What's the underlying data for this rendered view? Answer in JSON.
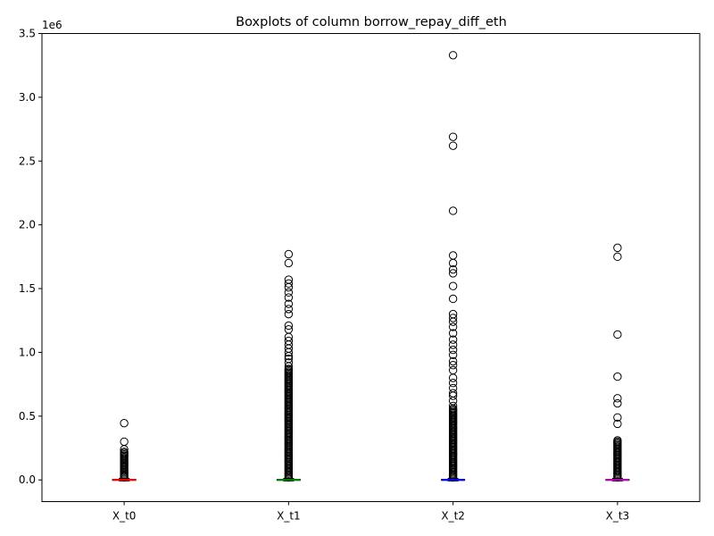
{
  "chart_data": {
    "type": "boxplot",
    "title": "Boxplots of column borrow_repay_diff_eth",
    "xlabel": "",
    "ylabel": "",
    "y_offset_label": "1e6",
    "ylim": [
      -0.17,
      3.5
    ],
    "y_ticks": [
      0.0,
      0.5,
      1.0,
      1.5,
      2.0,
      2.5,
      3.0,
      3.5
    ],
    "y_tick_labels": [
      "0.0",
      "0.5",
      "1.0",
      "1.5",
      "2.0",
      "2.5",
      "3.0",
      "3.5"
    ],
    "grid": false,
    "categories": [
      "X_t0",
      "X_t1",
      "X_t2",
      "X_t3"
    ],
    "series": [
      {
        "category": "X_t0",
        "median_color": "#ff0000",
        "q1": 0.0,
        "median": 0.0,
        "q3": 0.004,
        "whisker_low": -0.008,
        "whisker_high": 0.012,
        "outliers_dense_range": [
          0.02,
          0.19
        ],
        "outliers": [
          0.2,
          0.21,
          0.22,
          0.24,
          0.3,
          0.445
        ]
      },
      {
        "category": "X_t1",
        "median_color": "#008000",
        "q1": 0.0,
        "median": 0.0,
        "q3": 0.004,
        "whisker_low": -0.008,
        "whisker_high": 0.012,
        "outliers_dense_range": [
          0.02,
          0.87
        ],
        "outliers": [
          0.89,
          0.92,
          0.95,
          0.97,
          1.0,
          1.03,
          1.06,
          1.09,
          1.12,
          1.18,
          1.21,
          1.3,
          1.34,
          1.38,
          1.43,
          1.47,
          1.51,
          1.54,
          1.57,
          1.7,
          1.77
        ]
      },
      {
        "category": "X_t2",
        "median_color": "#0000ff",
        "q1": 0.0,
        "median": 0.0,
        "q3": 0.004,
        "whisker_low": -0.008,
        "whisker_high": 0.012,
        "outliers_dense_range": [
          0.02,
          0.56
        ],
        "outliers": [
          0.58,
          0.62,
          0.66,
          0.68,
          0.72,
          0.76,
          0.8,
          0.86,
          0.9,
          0.93,
          0.98,
          1.02,
          1.06,
          1.1,
          1.15,
          1.2,
          1.24,
          1.27,
          1.3,
          1.42,
          1.52,
          1.62,
          1.65,
          1.7,
          1.76,
          2.11,
          2.62,
          2.69,
          3.33
        ]
      },
      {
        "category": "X_t3",
        "median_color": "#bf00bf",
        "q1": 0.0,
        "median": 0.0,
        "q3": 0.004,
        "whisker_low": -0.008,
        "whisker_high": 0.012,
        "outliers_dense_range": [
          0.02,
          0.31
        ],
        "outliers": [
          0.44,
          0.49,
          0.6,
          0.64,
          0.81,
          1.14,
          1.75,
          1.82
        ]
      }
    ]
  }
}
